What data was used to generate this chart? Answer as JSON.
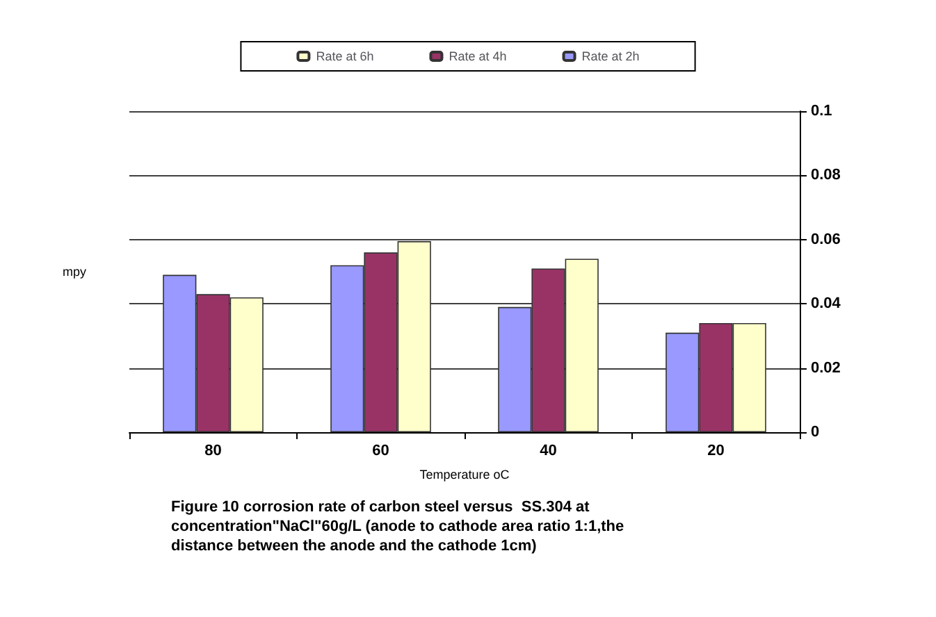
{
  "chart_data": {
    "type": "bar",
    "xlabel": "Temperature oC",
    "ylabel": "mpy",
    "categories": [
      "80",
      "60",
      "40",
      "20"
    ],
    "series": [
      {
        "name": "Rate at 2h",
        "color": "#9999ff",
        "values": [
          0.049,
          0.052,
          0.039,
          0.031
        ]
      },
      {
        "name": "Rate at 4h",
        "color": "#993366",
        "values": [
          0.043,
          0.056,
          0.051,
          0.034
        ]
      },
      {
        "name": "Rate at 6h",
        "color": "#ffffcc",
        "values": [
          0.042,
          0.0595,
          0.054,
          0.034
        ]
      }
    ],
    "ylim": [
      0,
      0.1
    ],
    "yticks": [
      0,
      0.02,
      0.04,
      0.06,
      0.08,
      0.1
    ],
    "grid": "y",
    "legend": "top",
    "annotations": [
      "Figure 10 corrosion rate of carbon steel versus  SS.304 at\nconcentration\"NaCl\"60g/L (anode to cathode area ratio 1:1,the\ndistance between the anode and the cathode 1cm)"
    ]
  }
}
